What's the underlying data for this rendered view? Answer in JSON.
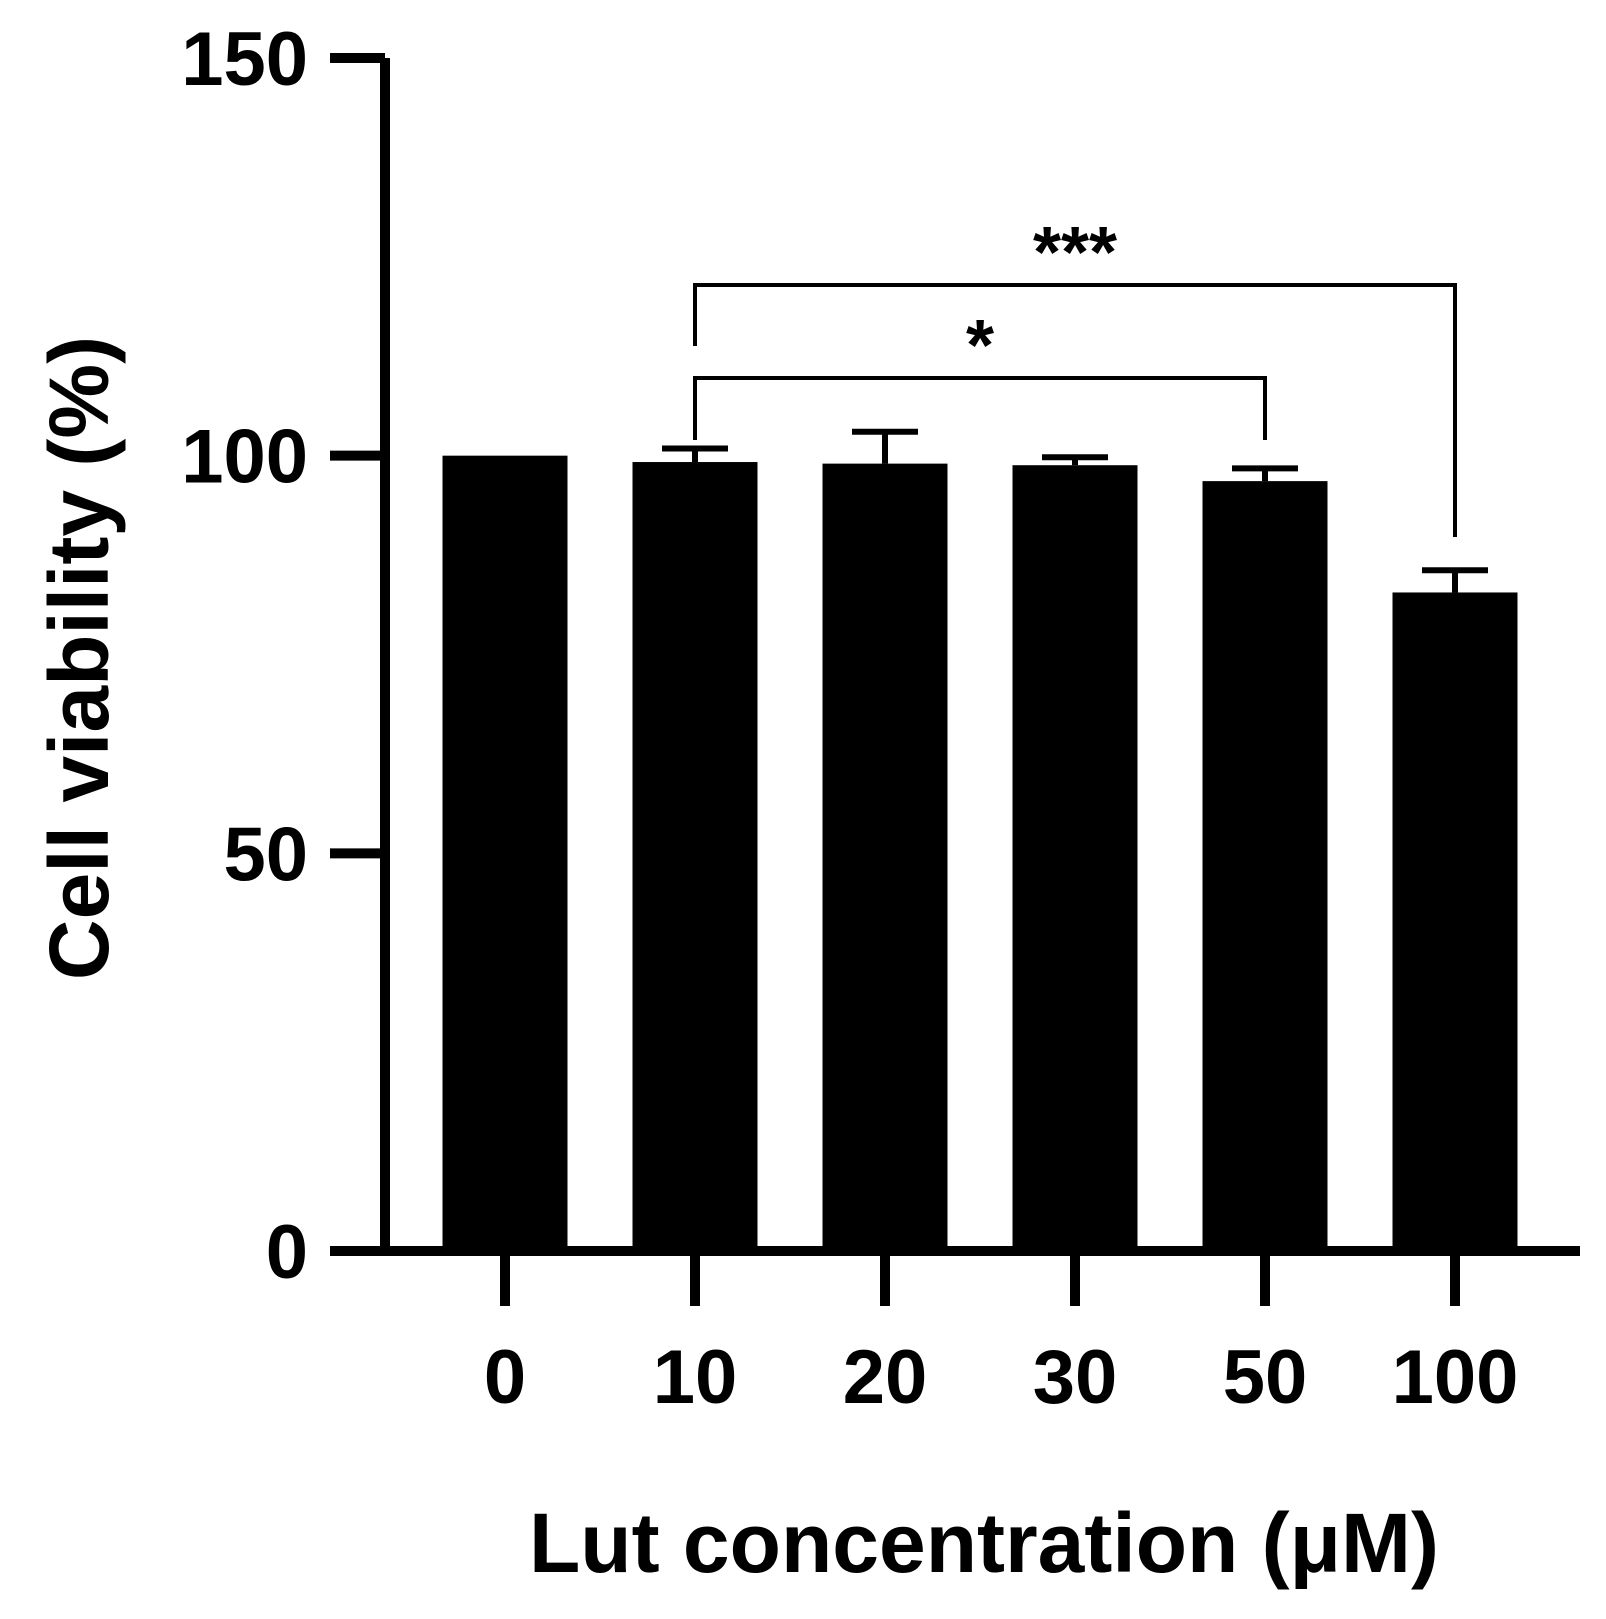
{
  "chart_data": {
    "type": "bar",
    "title": "",
    "xlabel": "Lut concentration (μM)",
    "ylabel": "Cell viability (%)",
    "ylim": [
      0,
      150
    ],
    "yticks": [
      0,
      50,
      100,
      150
    ],
    "categories": [
      "0",
      "10",
      "20",
      "30",
      "50",
      "100"
    ],
    "values": [
      100,
      99.2,
      99.0,
      98.8,
      96.8,
      82.8
    ],
    "errors": [
      0,
      1.7,
      4.0,
      1.0,
      1.6,
      2.8
    ],
    "bar_color": "#000000",
    "grid": false,
    "significance": [
      {
        "from": "10",
        "to": "50",
        "label": "*"
      },
      {
        "from": "10",
        "to": "100",
        "label": "***"
      }
    ]
  }
}
